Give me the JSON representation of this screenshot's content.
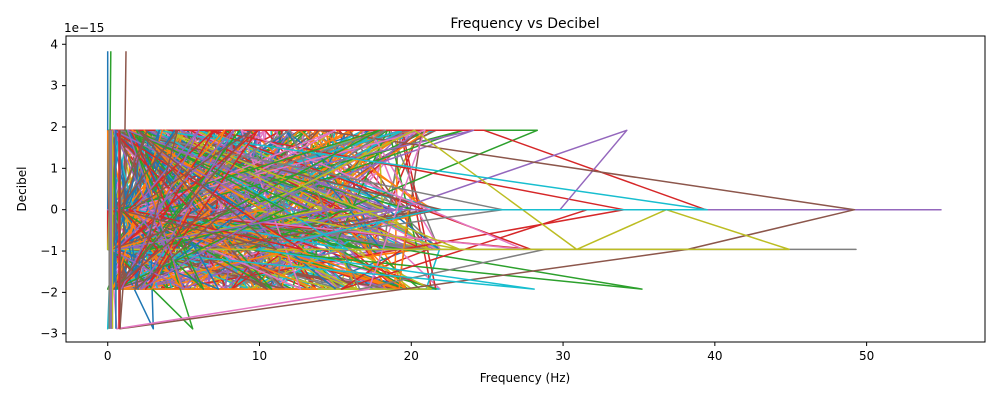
{
  "chart_data": {
    "type": "line",
    "title": "Frequency vs Decibel",
    "xlabel": "Frequency (Hz)",
    "ylabel": "Decibel",
    "y_scale_label": "1e−15",
    "xlim": [
      -2.75,
      57.8
    ],
    "ylim": [
      -3.2,
      4.2
    ],
    "x_ticks": [
      0,
      10,
      20,
      30,
      40,
      50
    ],
    "y_ticks": [
      -3,
      -2,
      -1,
      0,
      1,
      2,
      3,
      4
    ],
    "grid": false,
    "legend": "none",
    "y_levels": [
      3.83,
      1.92,
      0.0,
      -0.96,
      -1.92,
      -2.88
    ],
    "colors": [
      "#1f77b4",
      "#ff7f0e",
      "#2ca02c",
      "#d62728",
      "#9467bd",
      "#8c564b",
      "#e377c2",
      "#7f7f7f",
      "#bcbd22",
      "#17becf"
    ],
    "series": [
      {
        "x": [
          0.0,
          0.0,
          0.0,
          0.1,
          0.2,
          0.4,
          0.5,
          3.0,
          2.6,
          6.1,
          1.0,
          9.4,
          0.7
        ],
        "y": [
          3.83,
          1.92,
          -0.96,
          0.0,
          1.92,
          -1.92,
          -0.96,
          -2.88,
          1.92,
          -0.96,
          0.0,
          1.92,
          -1.92
        ]
      },
      {
        "x": [
          0.0,
          0.1,
          0.0,
          0.3,
          5.1,
          1.2,
          8.5,
          2.3,
          12.3,
          0.9,
          13.8,
          0.6,
          19.2,
          19.8,
          0.0
        ],
        "y": [
          1.92,
          -0.96,
          0.0,
          -1.92,
          1.92,
          0.0,
          -0.96,
          1.92,
          -0.96,
          -1.92,
          -1.92,
          0.0,
          -1.92,
          0.0,
          0.0
        ]
      },
      {
        "x": [
          0.2,
          0.1,
          0.3,
          5.6,
          1.5,
          10.8,
          1.9,
          16.5,
          2.1,
          28.3,
          9.2,
          35.2,
          3.7,
          23.4,
          1.1
        ],
        "y": [
          3.83,
          0.0,
          -0.96,
          -2.88,
          1.92,
          -1.92,
          0.0,
          0.0,
          1.92,
          1.92,
          -0.96,
          -1.92,
          0.0,
          1.92,
          -0.96
        ]
      },
      {
        "x": [
          0.0,
          0.0,
          0.2,
          24.8,
          39.4,
          3.0,
          31.6,
          15.4,
          19.4,
          34.0,
          6.7,
          27.9,
          0.5
        ],
        "y": [
          0.0,
          -0.96,
          1.92,
          1.92,
          0.0,
          0.0,
          0.0,
          -1.92,
          -0.96,
          0.0,
          1.92,
          -0.96,
          0.0
        ]
      },
      {
        "x": [
          0.1,
          0.0,
          54.9,
          29.8,
          34.2,
          11.4,
          4.8,
          18.9,
          1.4,
          24.1,
          0.8
        ],
        "y": [
          0.0,
          0.0,
          0.0,
          0.0,
          1.92,
          -0.96,
          1.92,
          0.0,
          -0.96,
          1.92,
          0.0
        ]
      },
      {
        "x": [
          1.2,
          1.0,
          0.8,
          38.2,
          49.2,
          13.9,
          6.4,
          22.0,
          0.9,
          10.5,
          0.4
        ],
        "y": [
          3.83,
          -1.92,
          -2.88,
          -0.96,
          0.0,
          1.92,
          -0.96,
          0.0,
          1.92,
          -1.92,
          0.0
        ]
      },
      {
        "x": [
          0.4,
          0.6,
          17.2,
          20.9,
          1.0,
          12.7,
          8.8,
          27.4,
          2.2,
          15.0,
          0.3
        ],
        "y": [
          -1.92,
          -2.88,
          -1.92,
          1.92,
          0.0,
          -1.92,
          1.92,
          -0.96,
          0.0,
          1.92,
          -0.96
        ]
      },
      {
        "x": [
          0.2,
          0.0,
          49.3,
          28.8,
          16.6,
          12.0,
          2.7,
          18.3,
          7.1,
          26.0,
          0.7
        ],
        "y": [
          0.0,
          -0.96,
          -0.96,
          -0.96,
          -1.92,
          1.92,
          0.0,
          1.92,
          -0.96,
          0.0,
          1.92
        ]
      },
      {
        "x": [
          0.1,
          0.0,
          44.9,
          36.8,
          30.9,
          20.2,
          9.6,
          23.2,
          3.8,
          14.1,
          0.5
        ],
        "y": [
          0.0,
          -0.96,
          -0.96,
          0.0,
          -0.96,
          1.92,
          0.0,
          -0.96,
          1.92,
          0.0,
          -0.96
        ]
      },
      {
        "x": [
          0.3,
          0.0,
          0.2,
          28.1,
          9.8,
          21.5,
          39.5,
          3.2,
          15.8,
          1.7,
          0.4
        ],
        "y": [
          -1.92,
          -2.88,
          -0.96,
          -1.92,
          -0.96,
          0.0,
          0.0,
          1.92,
          -0.96,
          0.0,
          1.92
        ]
      },
      {
        "x": [
          0.6,
          2.0,
          0.9,
          4.4,
          0.7,
          7.3,
          1.3,
          5.9,
          0.2,
          3.4,
          1.8,
          9.0,
          0.5
        ],
        "y": [
          1.92,
          -1.92,
          0.0,
          1.92,
          -0.96,
          -1.92,
          1.92,
          0.0,
          -0.96,
          1.92,
          -1.92,
          0.0,
          1.92
        ]
      },
      {
        "x": [
          1.1,
          3.6,
          0.4,
          6.8,
          2.4,
          8.1,
          0.8,
          4.9,
          1.6,
          10.2,
          0.3,
          7.7,
          2.9
        ],
        "y": [
          -0.96,
          1.92,
          -1.92,
          0.0,
          1.92,
          -0.96,
          0.0,
          -1.92,
          1.92,
          0.0,
          -0.96,
          1.92,
          -1.92
        ]
      },
      {
        "x": [
          0.7,
          5.2,
          1.9,
          11.6,
          0.5,
          8.7,
          2.8,
          13.3,
          1.2,
          6.3,
          0.9,
          17.9,
          3.1
        ],
        "y": [
          0.0,
          -0.96,
          1.92,
          0.0,
          -1.92,
          1.92,
          -0.96,
          0.0,
          1.92,
          -1.92,
          0.0,
          1.92,
          -0.96
        ]
      },
      {
        "x": [
          1.5,
          4.0,
          0.6,
          9.9,
          2.5,
          5.5,
          0.3,
          12.8,
          1.4,
          7.0,
          0.8,
          3.3,
          1.0
        ],
        "y": [
          1.92,
          0.0,
          -0.96,
          1.92,
          -1.92,
          0.0,
          1.92,
          -0.96,
          0.0,
          1.92,
          -1.92,
          -0.96,
          0.0
        ]
      },
      {
        "x": [
          0.9,
          6.0,
          1.7,
          3.9,
          0.4,
          10.9,
          2.2,
          8.3,
          0.6,
          14.7,
          1.3,
          5.0,
          0.2
        ],
        "y": [
          -1.92,
          1.92,
          0.0,
          -0.96,
          1.92,
          0.0,
          -1.92,
          1.92,
          -0.96,
          0.0,
          1.92,
          -1.92,
          -0.96
        ]
      },
      {
        "x": [
          0.5,
          2.6,
          0.2,
          7.9,
          1.8,
          4.6,
          0.7,
          11.1,
          2.0,
          6.6,
          0.4,
          9.5,
          1.6
        ],
        "y": [
          0.0,
          1.92,
          -0.96,
          0.0,
          -1.92,
          1.92,
          0.0,
          -0.96,
          1.92,
          0.0,
          -1.92,
          1.92,
          0.0
        ]
      }
    ]
  }
}
